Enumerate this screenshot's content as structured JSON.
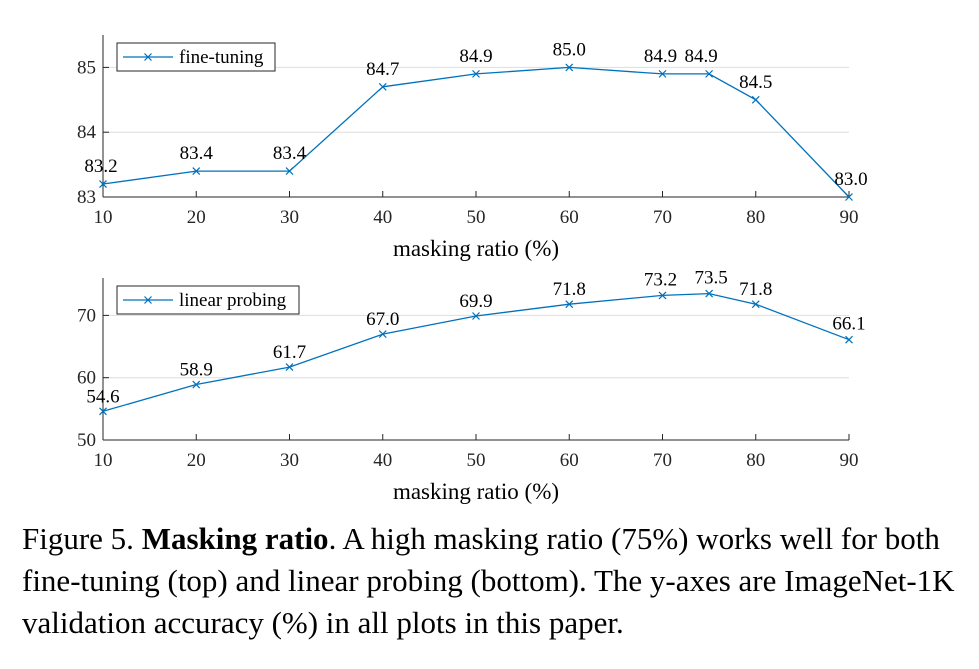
{
  "chart_data": [
    {
      "type": "line",
      "xlabel": "masking ratio (%)",
      "ylabel": "",
      "xlim": [
        10,
        90
      ],
      "ylim": [
        83,
        85.5
      ],
      "xticks": [
        10,
        20,
        30,
        40,
        50,
        60,
        70,
        80,
        90
      ],
      "yticks": [
        83,
        84,
        85
      ],
      "grid": "horizontal",
      "legend_position": "top-left",
      "series": [
        {
          "name": "fine-tuning",
          "color": "#0072bd",
          "marker": "x",
          "x": [
            10,
            20,
            30,
            40,
            50,
            60,
            70,
            75,
            80,
            90
          ],
          "y": [
            83.2,
            83.4,
            83.4,
            84.7,
            84.9,
            85.0,
            84.9,
            84.9,
            84.5,
            83.0
          ],
          "labels": [
            "83.2",
            "83.4",
            "83.4",
            "84.7",
            "84.9",
            "85.0",
            "84.9",
            "84.9",
            "84.5",
            "83.0"
          ]
        }
      ]
    },
    {
      "type": "line",
      "xlabel": "masking ratio (%)",
      "ylabel": "",
      "xlim": [
        10,
        90
      ],
      "ylim": [
        50,
        76
      ],
      "xticks": [
        10,
        20,
        30,
        40,
        50,
        60,
        70,
        80,
        90
      ],
      "yticks": [
        50,
        60,
        70
      ],
      "grid": "horizontal",
      "legend_position": "top-left",
      "series": [
        {
          "name": "linear probing",
          "color": "#0072bd",
          "marker": "x",
          "x": [
            10,
            20,
            30,
            40,
            50,
            60,
            70,
            75,
            80,
            90
          ],
          "y": [
            54.6,
            58.9,
            61.7,
            67.0,
            69.9,
            71.8,
            73.2,
            73.5,
            71.8,
            66.1
          ],
          "labels": [
            "54.6",
            "58.9",
            "61.7",
            "67.0",
            "69.9",
            "71.8",
            "73.2",
            "73.5",
            "71.8",
            "66.1"
          ]
        }
      ]
    }
  ],
  "caption": {
    "prefix": "Figure 5. ",
    "bold": "Masking ratio",
    "text": ". A high masking ratio (75%) works well for both fine-tuning (top) and linear probing (bottom). The y-axes are ImageNet-1K validation accuracy (%) in all plots in this paper."
  }
}
